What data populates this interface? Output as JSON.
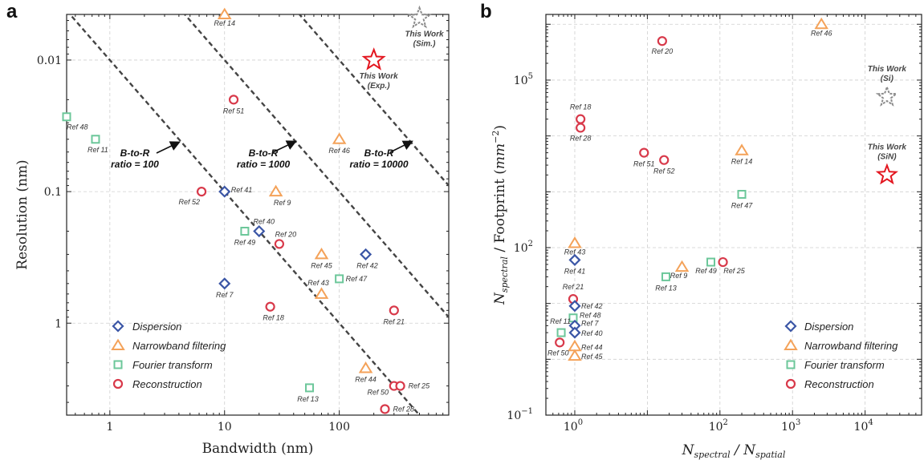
{
  "colors": {
    "Dispersion": "#3b56a6",
    "Narrowband filtering": "#f4a259",
    "Fourier transform": "#6cc79a",
    "Reconstruction": "#d8394a",
    "this_work_exp": "#e3161f",
    "this_work_sim": "#8c8c8c"
  },
  "chart_data": [
    {
      "panel": "a",
      "type": "scatter",
      "xlabel": "Bandwidth (nm)",
      "ylabel": "Resolution (nm)",
      "xscale": "log",
      "yscale": "log",
      "yinverted": true,
      "xlim": [
        0.42,
        900
      ],
      "ylim": [
        0.0045,
        5
      ],
      "xticks": [
        {
          "v": 1,
          "label": "1"
        },
        {
          "v": 10,
          "label": "10"
        },
        {
          "v": 100,
          "label": "100"
        }
      ],
      "yticks": [
        {
          "v": 0.01,
          "label": "0.01"
        },
        {
          "v": 0.1,
          "label": "0.1"
        },
        {
          "v": 1,
          "label": "1"
        }
      ],
      "grid": true,
      "legend_position": "bottom-left",
      "legend": [
        "Dispersion",
        "Narrowband filtering",
        "Fourier transform",
        "Reconstruction"
      ],
      "points": [
        {
          "series": "Fourier transform",
          "label": "Ref 48",
          "x": 0.42,
          "y": 0.027
        },
        {
          "series": "Fourier transform",
          "label": "Ref 11",
          "x": 0.75,
          "y": 0.04
        },
        {
          "series": "Narrowband filtering",
          "label": "Ref 14",
          "x": 10,
          "y": 0.0045
        },
        {
          "series": "Reconstruction",
          "label": "Ref 51",
          "x": 12,
          "y": 0.02
        },
        {
          "series": "Narrowband filtering",
          "label": "Ref 46",
          "x": 100,
          "y": 0.04
        },
        {
          "series": "Reconstruction",
          "label": "Ref 52",
          "x": 6.3,
          "y": 0.1
        },
        {
          "series": "Dispersion",
          "label": "Ref 41",
          "x": 10,
          "y": 0.1
        },
        {
          "series": "Narrowband filtering",
          "label": "Ref 9",
          "x": 28,
          "y": 0.1
        },
        {
          "series": "Fourier transform",
          "label": "Ref 49",
          "x": 15,
          "y": 0.2
        },
        {
          "series": "Dispersion",
          "label": "Ref 40",
          "x": 20,
          "y": 0.2
        },
        {
          "series": "Reconstruction",
          "label": "Ref 20",
          "x": 30,
          "y": 0.25
        },
        {
          "series": "Narrowband filtering",
          "label": "Ref 45",
          "x": 70,
          "y": 0.3
        },
        {
          "series": "Dispersion",
          "label": "Ref 42",
          "x": 170,
          "y": 0.3
        },
        {
          "series": "Fourier transform",
          "label": "Ref 47",
          "x": 100,
          "y": 0.46
        },
        {
          "series": "Dispersion",
          "label": "Ref 7",
          "x": 10,
          "y": 0.5
        },
        {
          "series": "Narrowband filtering",
          "label": "Ref 43",
          "x": 70,
          "y": 0.6
        },
        {
          "series": "Reconstruction",
          "label": "Ref 18",
          "x": 25,
          "y": 0.75
        },
        {
          "series": "Reconstruction",
          "label": "Ref 21",
          "x": 300,
          "y": 0.8
        },
        {
          "series": "Narrowband filtering",
          "label": "Ref 44",
          "x": 170,
          "y": 2.2
        },
        {
          "series": "Fourier transform",
          "label": "Ref 13",
          "x": 55,
          "y": 3.1
        },
        {
          "series": "Reconstruction",
          "label": "Ref 50",
          "x": 300,
          "y": 3.0
        },
        {
          "series": "Reconstruction",
          "label": "Ref 25",
          "x": 340,
          "y": 3.0
        },
        {
          "series": "Reconstruction",
          "label": "Ref 28",
          "x": 250,
          "y": 4.5
        }
      ],
      "this_work": [
        {
          "label": [
            "This Work",
            "(Exp.)"
          ],
          "x": 200,
          "y": 0.01,
          "style": "exp"
        },
        {
          "label": [
            "This Work",
            "(Sim.)"
          ],
          "x": 500,
          "y": 0.0048,
          "style": "sim"
        }
      ],
      "ratio_lines": [
        {
          "label": [
            "B-to-R",
            "ratio = 100"
          ],
          "ratio": 100
        },
        {
          "label": [
            "B-to-R",
            "ratio = 1000"
          ],
          "ratio": 1000
        },
        {
          "label": [
            "B-to-R",
            "ratio = 10000"
          ],
          "ratio": 10000
        }
      ]
    },
    {
      "panel": "b",
      "type": "scatter",
      "xlabel": "N_spectral / N_spatial",
      "ylabel": "N_spectral / Footprint (mm^-2)",
      "xscale": "log",
      "yscale": "log",
      "xlim": [
        0.4,
        60000
      ],
      "ylim": [
        0.1,
        1500000
      ],
      "xticks": [
        {
          "v": 1,
          "base": "10",
          "exp": "0"
        },
        {
          "v": 100,
          "base": "10",
          "exp": "2"
        },
        {
          "v": 1000,
          "base": "10",
          "exp": "3"
        },
        {
          "v": 10000,
          "base": "10",
          "exp": "4"
        }
      ],
      "yticks": [
        {
          "v": 0.1,
          "base": "10",
          "exp": "−1"
        },
        {
          "v": 100,
          "base": "10",
          "exp": "2"
        },
        {
          "v": 100000,
          "base": "10",
          "exp": "5"
        }
      ],
      "grid": true,
      "legend_position": "bottom-right",
      "legend": [
        "Dispersion",
        "Narrowband filtering",
        "Fourier transform",
        "Reconstruction"
      ],
      "points": [
        {
          "series": "Narrowband filtering",
          "label": "Ref 46",
          "x": 2500,
          "y": 1000000
        },
        {
          "series": "Reconstruction",
          "label": "Ref 20",
          "x": 16,
          "y": 500000
        },
        {
          "series": "Reconstruction",
          "label": "Ref 18",
          "x": 1.2,
          "y": 20000
        },
        {
          "series": "Reconstruction",
          "label": "Ref 28",
          "x": 1.2,
          "y": 14000
        },
        {
          "series": "Reconstruction",
          "label": "Ref 51",
          "x": 9,
          "y": 5000
        },
        {
          "series": "Reconstruction",
          "label": "Ref 52",
          "x": 17,
          "y": 3700
        },
        {
          "series": "Narrowband filtering",
          "label": "Ref 14",
          "x": 200,
          "y": 5500
        },
        {
          "series": "Fourier transform",
          "label": "Ref 47",
          "x": 200,
          "y": 900
        },
        {
          "series": "Narrowband filtering",
          "label": "Ref 43",
          "x": 1,
          "y": 120
        },
        {
          "series": "Dispersion",
          "label": "Ref 41",
          "x": 1,
          "y": 60
        },
        {
          "series": "Narrowband filtering",
          "label": "Ref 9",
          "x": 30,
          "y": 45
        },
        {
          "series": "Fourier transform",
          "label": "Ref 49",
          "x": 75,
          "y": 55
        },
        {
          "series": "Reconstruction",
          "label": "Ref 25",
          "x": 110,
          "y": 55
        },
        {
          "series": "Fourier transform",
          "label": "Ref 13",
          "x": 18,
          "y": 30
        },
        {
          "series": "Reconstruction",
          "label": "Ref 21",
          "x": 0.95,
          "y": 12
        },
        {
          "series": "Dispersion",
          "label": "Ref 42",
          "x": 1,
          "y": 9
        },
        {
          "series": "Fourier transform",
          "label": "Ref 48",
          "x": 0.95,
          "y": 5.5
        },
        {
          "series": "Dispersion",
          "label": "Ref 7",
          "x": 1,
          "y": 4
        },
        {
          "series": "Dispersion",
          "label": "Ref 40",
          "x": 1,
          "y": 3
        },
        {
          "series": "Fourier transform",
          "label": "Ref 11",
          "x": 0.65,
          "y": 3
        },
        {
          "series": "Narrowband filtering",
          "label": "Ref 44",
          "x": 1,
          "y": 1.7
        },
        {
          "series": "Narrowband filtering",
          "label": "Ref 45",
          "x": 1,
          "y": 1.15
        },
        {
          "series": "Reconstruction",
          "label": "Ref 50",
          "x": 0.62,
          "y": 2
        }
      ],
      "this_work": [
        {
          "label": [
            "This Work",
            "(Si)"
          ],
          "x": 20000,
          "y": 50000,
          "style": "sim"
        },
        {
          "label": [
            "This Work",
            "(SiN)"
          ],
          "x": 20000,
          "y": 2000,
          "style": "exp"
        }
      ]
    }
  ]
}
